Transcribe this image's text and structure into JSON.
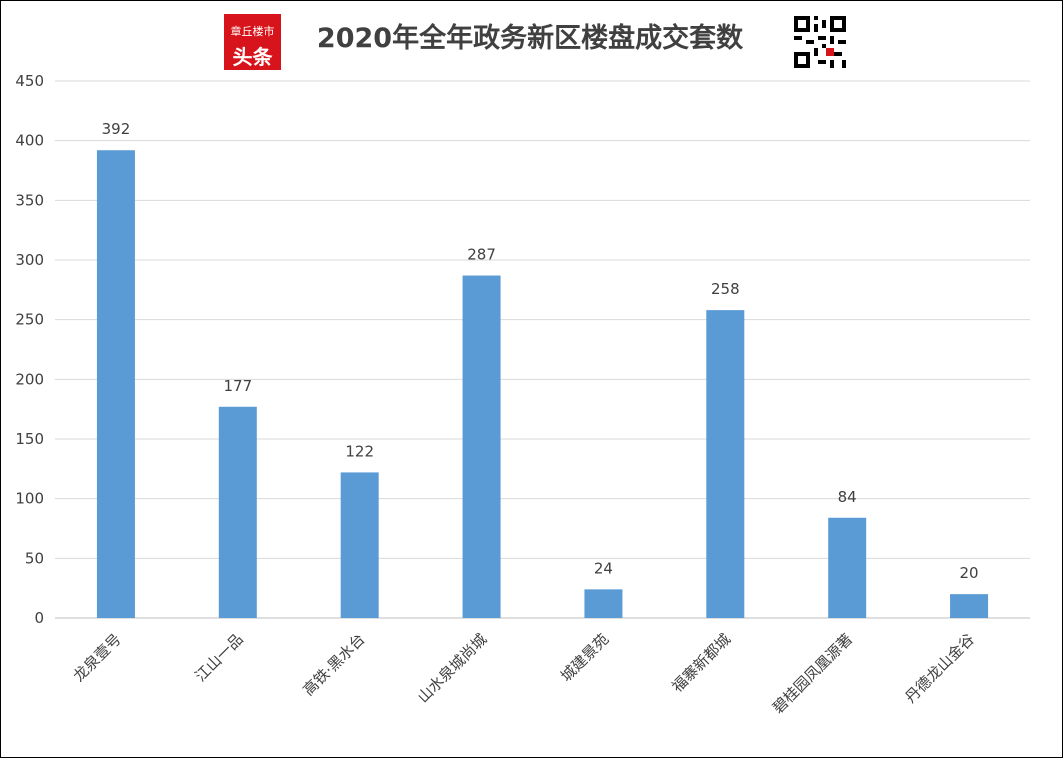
{
  "header": {
    "logo_top": "章丘楼市",
    "logo_bottom": "头条",
    "title": "2020年全年政务新区楼盘成交套数"
  },
  "chart_data": {
    "type": "bar",
    "title": "2020年全年政务新区楼盘成交套数",
    "categories": [
      "龙泉壹号",
      "江山一品",
      "高铁·黑水台",
      "山水泉城尚城",
      "城建景苑",
      "福寨新都城",
      "碧桂园凤凰源著",
      "丹德龙山金谷"
    ],
    "values": [
      392,
      177,
      122,
      287,
      24,
      258,
      84,
      20
    ],
    "data_labels": [
      "392",
      "177",
      "122",
      "287",
      "24",
      "258",
      "84",
      "20"
    ],
    "ylim": [
      0,
      450
    ],
    "yticks": [
      0,
      50,
      100,
      150,
      200,
      250,
      300,
      350,
      400,
      450
    ],
    "grid": true,
    "bar_color": "#5b9bd5",
    "xlabel": "",
    "ylabel": ""
  }
}
